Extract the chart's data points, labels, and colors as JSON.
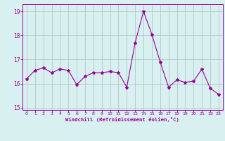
{
  "x": [
    0,
    1,
    2,
    3,
    4,
    5,
    6,
    7,
    8,
    9,
    10,
    11,
    12,
    13,
    14,
    15,
    16,
    17,
    18,
    19,
    20,
    21,
    22,
    23
  ],
  "y": [
    16.2,
    16.55,
    16.65,
    16.45,
    16.6,
    16.55,
    15.95,
    16.3,
    16.45,
    16.45,
    16.5,
    16.45,
    15.85,
    17.7,
    19.0,
    18.05,
    16.9,
    15.85,
    16.15,
    16.05,
    16.1,
    16.6,
    15.8,
    15.55
  ],
  "line_color": "#990099",
  "marker": "*",
  "marker_color": "#990099",
  "bg_color": "#d9f0f0",
  "grid_color": "#b0c8c8",
  "xlabel": "Windchill (Refroidissement éolien,°C)",
  "xlabel_color": "#990099",
  "tick_color": "#990099",
  "ylim": [
    14.9,
    19.3
  ],
  "yticks": [
    15,
    16,
    17,
    18,
    19
  ],
  "xlim": [
    -0.5,
    23.5
  ],
  "xticks": [
    0,
    1,
    2,
    3,
    4,
    5,
    6,
    7,
    8,
    9,
    10,
    11,
    12,
    13,
    14,
    15,
    16,
    17,
    18,
    19,
    20,
    21,
    22,
    23
  ]
}
